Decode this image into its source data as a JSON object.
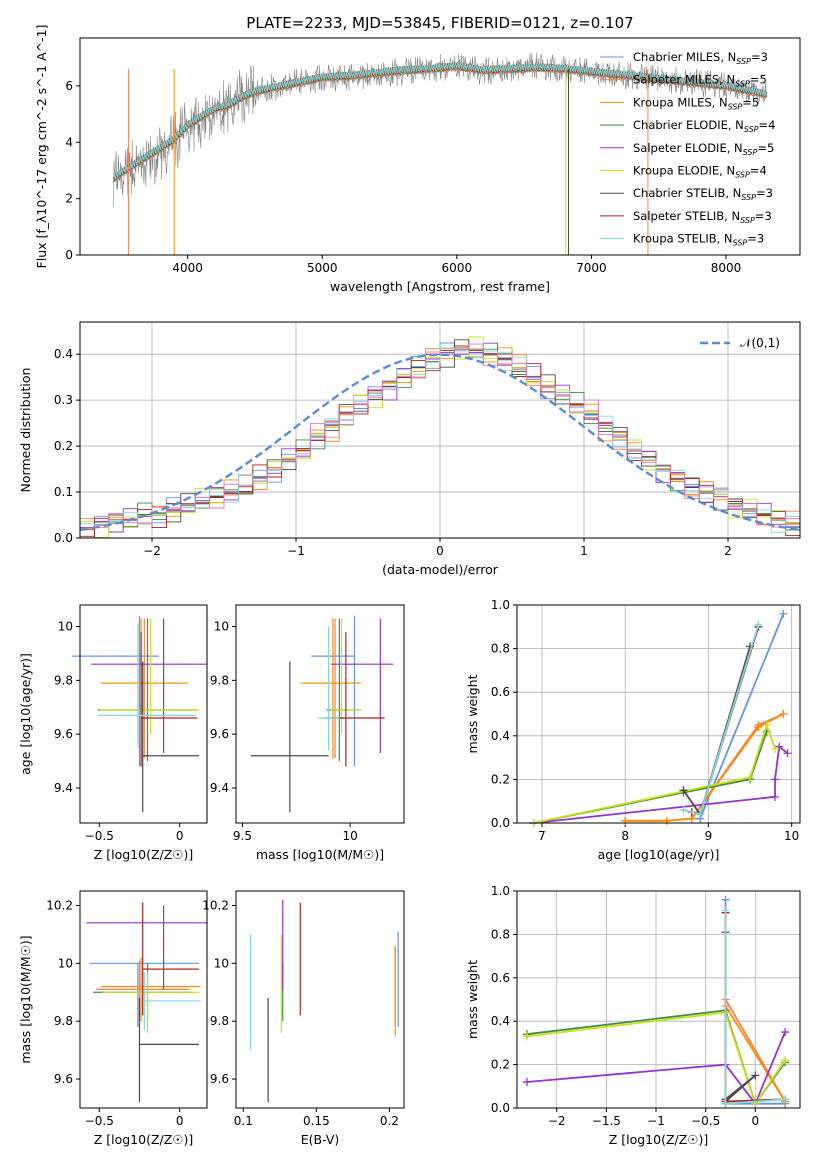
{
  "figure": {
    "title": "PLATE=2233, MJD=53845, FIBERID=0121, z=0.107"
  },
  "series_styles": [
    {
      "name": "Chabrier MILES",
      "nssp": "3",
      "color": "#6495ed"
    },
    {
      "name": "Salpeter MILES",
      "nssp": "5",
      "color": "#ff7f50"
    },
    {
      "name": "Kroupa MILES",
      "nssp": "5",
      "color": "#ff8c00"
    },
    {
      "name": "Chabrier ELODIE",
      "nssp": "4",
      "color": "#3f8f3f"
    },
    {
      "name": "Salpeter ELODIE",
      "nssp": "5",
      "color": "#9932cc"
    },
    {
      "name": "Kroupa ELODIE",
      "nssp": "4",
      "color": "#c8e01a"
    },
    {
      "name": "Chabrier STELIB",
      "nssp": "3",
      "color": "#4a4a4a"
    },
    {
      "name": "Salpeter STELIB",
      "nssp": "3",
      "color": "#b22222"
    },
    {
      "name": "Kroupa STELIB",
      "nssp": "3",
      "color": "#7fd8dc"
    }
  ],
  "extra_colors": {
    "data": "#808080",
    "hist_pink": "#e377c2",
    "normal": "#5b8bd6"
  },
  "chart_data": [
    {
      "id": "spectrum",
      "type": "line",
      "xlabel": "wavelength [Angstrom, rest frame]",
      "ylabel": "Flux [f_λ10^-17 erg cm^-2 s^-1 A^-1]",
      "xlim": [
        3200,
        8550
      ],
      "ylim": [
        0,
        7.7
      ],
      "xticks": [
        4000,
        5000,
        6000,
        7000,
        8000
      ],
      "yticks": [
        0,
        2,
        4,
        6
      ],
      "legend": "upper right",
      "data_series": {
        "name": "data",
        "x": [
          3450,
          3500,
          3600,
          3700,
          3800,
          3900,
          4000,
          4100,
          4200,
          4300,
          4400,
          4500,
          4600,
          4700,
          4800,
          4900,
          5000,
          5200,
          5400,
          5600,
          5800,
          6000,
          6200,
          6400,
          6600,
          6800,
          7000,
          7200,
          7400,
          7600,
          7800,
          8000,
          8200,
          8300
        ],
        "y": [
          2.6,
          2.8,
          3.1,
          3.4,
          3.6,
          4.0,
          4.5,
          4.8,
          5.1,
          5.2,
          5.6,
          5.8,
          5.9,
          6.0,
          6.1,
          6.2,
          6.3,
          6.3,
          6.4,
          6.5,
          6.6,
          6.7,
          6.5,
          6.6,
          6.7,
          6.6,
          6.5,
          6.4,
          6.3,
          6.2,
          6.1,
          6.0,
          5.8,
          5.6
        ]
      },
      "model_line": {
        "x": [
          3450,
          3500,
          3600,
          3700,
          3800,
          3900,
          4000,
          4100,
          4200,
          4300,
          4400,
          4500,
          4600,
          4700,
          4800,
          4900,
          5000,
          5200,
          5400,
          5600,
          5800,
          6000,
          6200,
          6400,
          6600,
          6800,
          7000,
          7200,
          7400,
          7600,
          7800,
          8000,
          8200,
          8300
        ],
        "y": [
          2.7,
          2.9,
          3.2,
          3.5,
          3.8,
          4.1,
          4.6,
          4.9,
          5.2,
          5.3,
          5.6,
          5.8,
          5.9,
          6.0,
          6.1,
          6.2,
          6.3,
          6.35,
          6.45,
          6.55,
          6.6,
          6.7,
          6.55,
          6.6,
          6.65,
          6.6,
          6.5,
          6.4,
          6.3,
          6.2,
          6.1,
          6.0,
          5.8,
          5.7
        ]
      }
    },
    {
      "id": "residuals",
      "type": "line",
      "xlabel": "(data-model)/error",
      "ylabel": "Normed distribution",
      "xlim": [
        -2.5,
        2.5
      ],
      "ylim": [
        0,
        0.47
      ],
      "xticks": [
        -2,
        -1,
        0,
        1,
        2
      ],
      "yticks": [
        0.0,
        0.1,
        0.2,
        0.3,
        0.4
      ],
      "grid": true,
      "legend": "upper right",
      "normal_label": "𝒩(0,1)",
      "bin_edges_start": -2.5,
      "bin_width": 0.1,
      "hist_heights": [
        0.02,
        0.03,
        0.04,
        0.04,
        0.05,
        0.05,
        0.06,
        0.07,
        0.08,
        0.09,
        0.1,
        0.11,
        0.13,
        0.15,
        0.17,
        0.19,
        0.22,
        0.24,
        0.27,
        0.29,
        0.31,
        0.33,
        0.35,
        0.37,
        0.39,
        0.4,
        0.41,
        0.41,
        0.4,
        0.39,
        0.37,
        0.35,
        0.33,
        0.31,
        0.29,
        0.27,
        0.24,
        0.22,
        0.19,
        0.17,
        0.15,
        0.13,
        0.11,
        0.1,
        0.09,
        0.07,
        0.06,
        0.05,
        0.04,
        0.03
      ]
    },
    {
      "id": "age-vs-Z",
      "type": "scatter",
      "xlabel": "Z [log10(Z/Z☉)]",
      "ylabel": "age [log10(age/yr)]",
      "xlim": [
        -0.62,
        0.17
      ],
      "ylim": [
        9.27,
        10.08
      ],
      "xticks": [
        -0.5,
        0.0
      ],
      "yticks": [
        9.4,
        9.6,
        9.8,
        10.0
      ],
      "points": [
        {
          "x": -0.25,
          "y": 9.89,
          "xerr": [
            0.42,
            0.12
          ],
          "yerr": [
            0.41,
            0.15
          ]
        },
        {
          "x": -0.22,
          "y": 9.79,
          "xerr": [
            0.27,
            0.27
          ],
          "yerr": [
            0.28,
            0.24
          ]
        },
        {
          "x": -0.24,
          "y": 9.79,
          "xerr": [
            0.25,
            0.29
          ],
          "yerr": [
            0.28,
            0.24
          ]
        },
        {
          "x": -0.2,
          "y": 9.69,
          "xerr": [
            0.31,
            0.31
          ],
          "yerr": [
            0.19,
            0.34
          ]
        },
        {
          "x": -0.1,
          "y": 9.86,
          "xerr": [
            0.45,
            0.27
          ],
          "yerr": [
            0.33,
            0.17
          ]
        },
        {
          "x": -0.18,
          "y": 9.69,
          "xerr": [
            0.32,
            0.3
          ],
          "yerr": [
            0.09,
            0.34
          ]
        },
        {
          "x": -0.23,
          "y": 9.52,
          "xerr": [
            0.0,
            0.35
          ],
          "yerr": [
            0.21,
            0.35
          ]
        },
        {
          "x": -0.24,
          "y": 9.66,
          "xerr": [
            0.0,
            0.35
          ],
          "yerr": [
            0.18,
            0.32
          ]
        },
        {
          "x": -0.26,
          "y": 9.67,
          "xerr": [
            0.25,
            0.36
          ],
          "yerr": [
            0.12,
            0.34
          ]
        }
      ]
    },
    {
      "id": "age-vs-mass",
      "type": "scatter",
      "xlabel": "mass [log10(M/M☉)]",
      "ylabel": "",
      "xlim": [
        9.47,
        10.25
      ],
      "ylim": [
        9.27,
        10.08
      ],
      "xticks": [
        9.5,
        10.0
      ],
      "yticks": [
        9.4,
        9.6,
        9.8,
        10.0
      ],
      "points": [
        {
          "x": 10.02,
          "y": 9.89,
          "xerr": [
            0.2,
            0.0
          ],
          "yerr": [
            0.41,
            0.15
          ]
        },
        {
          "x": 9.93,
          "y": 9.79,
          "xerr": [
            0.16,
            0.12
          ],
          "yerr": [
            0.28,
            0.24
          ]
        },
        {
          "x": 9.92,
          "y": 9.79,
          "xerr": [
            0.14,
            0.13
          ],
          "yerr": [
            0.28,
            0.24
          ]
        },
        {
          "x": 9.95,
          "y": 9.69,
          "xerr": [
            0.06,
            0.1
          ],
          "yerr": [
            0.19,
            0.34
          ]
        },
        {
          "x": 10.14,
          "y": 9.86,
          "xerr": [
            0.23,
            0.06
          ],
          "yerr": [
            0.33,
            0.17
          ]
        },
        {
          "x": 9.96,
          "y": 9.69,
          "xerr": [
            0.05,
            0.09
          ],
          "yerr": [
            0.09,
            0.34
          ]
        },
        {
          "x": 9.72,
          "y": 9.52,
          "xerr": [
            0.18,
            0.18
          ],
          "yerr": [
            0.21,
            0.35
          ]
        },
        {
          "x": 9.98,
          "y": 9.66,
          "xerr": [
            0.1,
            0.18
          ],
          "yerr": [
            0.18,
            0.32
          ]
        },
        {
          "x": 9.9,
          "y": 9.66,
          "xerr": [
            0.05,
            0.05
          ],
          "yerr": [
            0.12,
            0.34
          ]
        }
      ]
    },
    {
      "id": "weight-vs-age",
      "type": "line",
      "xlabel": "age [log10(age/yr)]",
      "ylabel": "mass weight",
      "xlim": [
        6.7,
        10.1
      ],
      "ylim": [
        0,
        1.0
      ],
      "xticks": [
        7,
        8,
        9,
        10
      ],
      "yticks": [
        0.0,
        0.2,
        0.4,
        0.6,
        0.8,
        1.0
      ],
      "grid": true,
      "series": [
        {
          "x": [
            8.8,
            8.9,
            9.9
          ],
          "y": [
            0.02,
            0.02,
            0.96
          ]
        },
        {
          "x": [
            8.0,
            8.5,
            8.8,
            9.6,
            9.9
          ],
          "y": [
            0.01,
            0.01,
            0.02,
            0.45,
            0.5
          ]
        },
        {
          "x": [
            8.0,
            8.5,
            8.8,
            9.6,
            9.9
          ],
          "y": [
            0.01,
            0.01,
            0.02,
            0.44,
            0.5
          ]
        },
        {
          "x": [
            6.9,
            8.7,
            9.5,
            9.7
          ],
          "y": [
            0.0,
            0.14,
            0.2,
            0.42
          ]
        },
        {
          "x": [
            6.9,
            9.8,
            9.8,
            9.85,
            9.95
          ],
          "y": [
            0.0,
            0.12,
            0.2,
            0.35,
            0.32
          ]
        },
        {
          "x": [
            6.9,
            9.5,
            9.7,
            9.8
          ],
          "y": [
            0.0,
            0.21,
            0.45,
            0.34
          ]
        },
        {
          "x": [
            8.7,
            8.9,
            9.5
          ],
          "y": [
            0.15,
            0.04,
            0.81
          ]
        },
        {
          "x": [
            8.8,
            8.9,
            9.6
          ],
          "y": [
            0.05,
            0.04,
            0.9
          ]
        },
        {
          "x": [
            8.7,
            8.9,
            9.6
          ],
          "y": [
            0.06,
            0.04,
            0.91
          ]
        }
      ]
    },
    {
      "id": "mass-vs-Z",
      "type": "scatter",
      "xlabel": "Z [log10(Z/Z☉)]",
      "ylabel": "mass [log10(M/M☉)]",
      "xlim": [
        -0.62,
        0.17
      ],
      "ylim": [
        9.5,
        10.25
      ],
      "xticks": [
        -0.5,
        0.0
      ],
      "yticks": [
        9.6,
        9.8,
        10.0,
        10.2
      ],
      "points": [
        {
          "x": -0.26,
          "y": 10.0,
          "xerr": [
            0.3,
            0.38
          ],
          "yerr": [
            0.22,
            0.0
          ]
        },
        {
          "x": -0.25,
          "y": 9.91,
          "xerr": [
            0.27,
            0.31
          ],
          "yerr": [
            0.15,
            0.1
          ]
        },
        {
          "x": -0.24,
          "y": 9.92,
          "xerr": [
            0.25,
            0.37
          ],
          "yerr": [
            0.12,
            0.1
          ]
        },
        {
          "x": -0.2,
          "y": 9.9,
          "xerr": [
            0.34,
            0.28
          ],
          "yerr": [
            0.1,
            0.1
          ]
        },
        {
          "x": -0.1,
          "y": 10.14,
          "xerr": [
            0.48,
            0.27
          ],
          "yerr": [
            0.23,
            0.06
          ]
        },
        {
          "x": -0.2,
          "y": 9.9,
          "xerr": [
            0.28,
            0.32
          ],
          "yerr": [
            0.14,
            0.07
          ]
        },
        {
          "x": -0.25,
          "y": 9.72,
          "xerr": [
            0.0,
            0.37
          ],
          "yerr": [
            0.2,
            0.16
          ]
        },
        {
          "x": -0.23,
          "y": 9.98,
          "xerr": [
            0.0,
            0.35
          ],
          "yerr": [
            0.16,
            0.23
          ]
        },
        {
          "x": -0.22,
          "y": 9.87,
          "xerr": [
            0.0,
            0.35
          ],
          "yerr": [
            0.1,
            0.1
          ]
        }
      ]
    },
    {
      "id": "mass-vs-ebv",
      "type": "scatter",
      "xlabel": "E(B-V)",
      "ylabel": "",
      "xlim": [
        0.095,
        0.21
      ],
      "ylim": [
        9.5,
        10.25
      ],
      "xticks": [
        0.1,
        0.15,
        0.2
      ],
      "yticks": [
        9.6,
        9.8,
        10.0,
        10.2
      ],
      "points": [
        {
          "x": 0.206,
          "y": 10.0,
          "xerr": [
            0.0,
            0.0
          ],
          "yerr": [
            0.22,
            0.11
          ]
        },
        {
          "x": 0.204,
          "y": 9.92,
          "xerr": [
            0.0,
            0.0
          ],
          "yerr": [
            0.13,
            0.14
          ]
        },
        {
          "x": 0.204,
          "y": 9.91,
          "xerr": [
            0.0,
            0.0
          ],
          "yerr": [
            0.16,
            0.15
          ]
        },
        {
          "x": 0.127,
          "y": 9.9,
          "xerr": [
            0.0,
            0.0
          ],
          "yerr": [
            0.1,
            0.1
          ]
        },
        {
          "x": 0.127,
          "y": 10.14,
          "xerr": [
            0.0,
            0.0
          ],
          "yerr": [
            0.23,
            0.08
          ]
        },
        {
          "x": 0.126,
          "y": 9.9,
          "xerr": [
            0.0,
            0.0
          ],
          "yerr": [
            0.14,
            0.2
          ]
        },
        {
          "x": 0.117,
          "y": 9.72,
          "xerr": [
            0.0,
            0.0
          ],
          "yerr": [
            0.2,
            0.16
          ]
        },
        {
          "x": 0.139,
          "y": 9.98,
          "xerr": [
            0.0,
            0.0
          ],
          "yerr": [
            0.16,
            0.23
          ]
        },
        {
          "x": 0.105,
          "y": 9.87,
          "xerr": [
            0.0,
            0.0
          ],
          "yerr": [
            0.17,
            0.23
          ]
        }
      ]
    },
    {
      "id": "weight-vs-Z",
      "type": "line",
      "xlabel": "Z [log10(Z/Z☉)]",
      "ylabel": "mass weight",
      "xlim": [
        -2.4,
        0.45
      ],
      "ylim": [
        0,
        1.0
      ],
      "xticks": [
        -2.0,
        -1.5,
        -1.0,
        -0.5,
        0.0
      ],
      "yticks": [
        0.0,
        0.2,
        0.4,
        0.6,
        0.8,
        1.0
      ],
      "grid": true,
      "series": [
        {
          "x": [
            -0.3,
            -0.3,
            0.3
          ],
          "y": [
            0.96,
            0.02,
            0.02
          ]
        },
        {
          "x": [
            -0.3,
            0.3
          ],
          "y": [
            0.5,
            0.03
          ]
        },
        {
          "x": [
            -0.3,
            0.3
          ],
          "y": [
            0.47,
            0.03
          ]
        },
        {
          "x": [
            -2.3,
            -0.3,
            0.0,
            0.3
          ],
          "y": [
            0.34,
            0.45,
            0.02,
            0.21
          ]
        },
        {
          "x": [
            -2.3,
            -0.3,
            0.0,
            0.3
          ],
          "y": [
            0.12,
            0.2,
            0.02,
            0.35
          ]
        },
        {
          "x": [
            -2.3,
            -0.3,
            0.0,
            0.3
          ],
          "y": [
            0.33,
            0.44,
            0.02,
            0.22
          ]
        },
        {
          "x": [
            -0.3,
            -0.3,
            0.0,
            -0.3
          ],
          "y": [
            0.81,
            0.03,
            0.15,
            0.04
          ]
        },
        {
          "x": [
            -0.3,
            -0.3,
            0.3
          ],
          "y": [
            0.9,
            0.03,
            0.04
          ]
        },
        {
          "x": [
            -0.3,
            -0.3,
            0.3
          ],
          "y": [
            0.91,
            0.02,
            0.04
          ]
        }
      ]
    }
  ]
}
